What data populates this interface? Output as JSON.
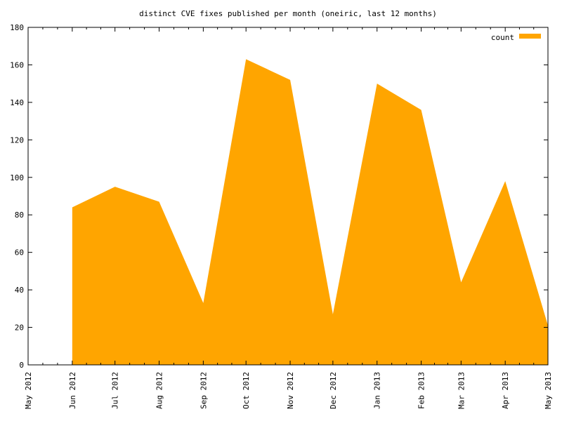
{
  "chart_data": {
    "type": "area",
    "title": "distinct CVE fixes published per month (oneiric, last 12 months)",
    "xlabel": "",
    "ylabel": "",
    "legend": {
      "label": "count",
      "placement": "top-right"
    },
    "colors": {
      "fill": "#FFA500",
      "axis": "#000000",
      "background": "#FFFFFF"
    },
    "grid": false,
    "ylim": [
      0,
      180
    ],
    "yticks": [
      "0",
      "20",
      "40",
      "60",
      "80",
      "100",
      "120",
      "140",
      "160",
      "180"
    ],
    "x_range": [
      "2012-05-01",
      "2013-05-01"
    ],
    "x_tick_labels": [
      "May 2012",
      "Jun 2012",
      "Jul 2012",
      "Aug 2012",
      "Sep 2012",
      "Oct 2012",
      "Nov 2012",
      "Dec 2012",
      "Jan 2013",
      "Feb 2013",
      "Mar 2013",
      "Apr 2013",
      "May 2013"
    ],
    "x_tick_dates": [
      "2012-05-01",
      "2012-06-01",
      "2012-07-01",
      "2012-08-01",
      "2012-09-01",
      "2012-10-01",
      "2012-11-01",
      "2012-12-01",
      "2013-01-01",
      "2013-02-01",
      "2013-03-01",
      "2013-04-01",
      "2013-05-01"
    ],
    "series": [
      {
        "name": "count",
        "x": [
          "2012-06-01",
          "2012-07-01",
          "2012-08-01",
          "2012-09-01",
          "2012-10-01",
          "2012-11-01",
          "2012-12-01",
          "2013-01-01",
          "2013-02-01",
          "2013-03-01",
          "2013-04-01",
          "2013-05-01"
        ],
        "values": [
          84,
          95,
          87,
          33,
          163,
          152,
          27,
          150,
          136,
          44,
          98,
          21
        ]
      }
    ]
  }
}
